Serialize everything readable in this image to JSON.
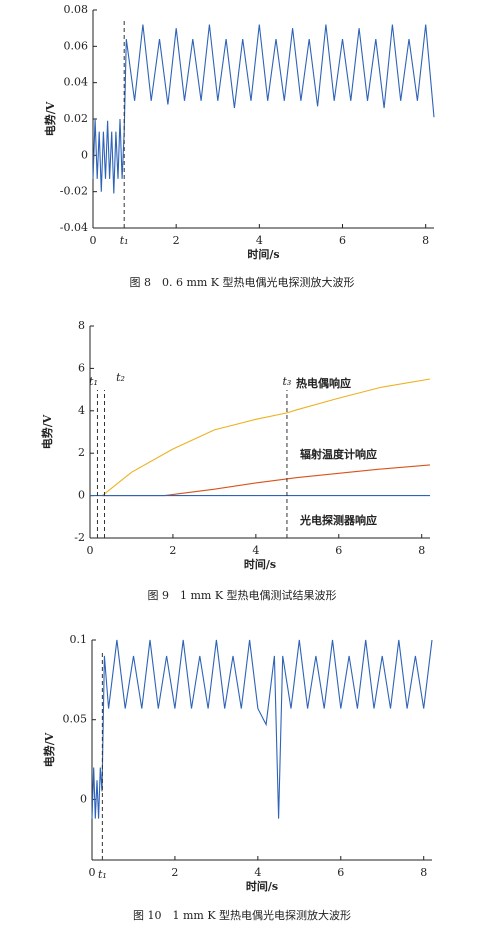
{
  "chart_data": [
    {
      "type": "line",
      "xlabel": "时间/s",
      "ylabel": "电势/V",
      "caption": "图 8　0. 6 mm K 型热电偶光电探测放大波形",
      "xlim": [
        0,
        8.2
      ],
      "ylim": [
        -0.04,
        0.08
      ],
      "xticks": [
        0,
        2,
        4,
        6,
        8
      ],
      "yticks": [
        -0.04,
        -0.02,
        0,
        0.02,
        0.04,
        0.06,
        0.08
      ],
      "markers": [
        {
          "label": "t₁",
          "x": 0.75
        }
      ],
      "series": [
        {
          "color": "#2e63b8",
          "x": [
            0,
            0.05,
            0.1,
            0.15,
            0.2,
            0.25,
            0.3,
            0.35,
            0.4,
            0.45,
            0.5,
            0.55,
            0.6,
            0.65,
            0.7,
            0.75,
            0.8,
            1.0,
            1.2,
            1.4,
            1.6,
            1.8,
            2.0,
            2.2,
            2.4,
            2.6,
            2.8,
            3.0,
            3.2,
            3.4,
            3.6,
            3.8,
            4.0,
            4.2,
            4.4,
            4.6,
            4.8,
            5.0,
            5.2,
            5.4,
            5.6,
            5.8,
            6.0,
            6.2,
            6.4,
            6.6,
            6.8,
            7.0,
            7.2,
            7.4,
            7.6,
            7.8,
            8.0,
            8.2
          ],
          "values": [
            -0.013,
            0.02,
            -0.013,
            0.013,
            -0.02,
            0.013,
            -0.013,
            0.019,
            -0.013,
            0.013,
            -0.021,
            0.013,
            -0.013,
            0.02,
            -0.013,
            0.013,
            0.064,
            0.03,
            0.072,
            0.03,
            0.064,
            0.028,
            0.07,
            0.03,
            0.064,
            0.03,
            0.072,
            0.03,
            0.064,
            0.026,
            0.064,
            0.03,
            0.072,
            0.03,
            0.064,
            0.03,
            0.07,
            0.03,
            0.064,
            0.027,
            0.072,
            0.03,
            0.064,
            0.03,
            0.07,
            0.03,
            0.064,
            0.026,
            0.072,
            0.03,
            0.064,
            0.03,
            0.072,
            0.021
          ]
        }
      ]
    },
    {
      "type": "line",
      "xlabel": "时间/s",
      "ylabel": "电势/V",
      "caption": "图 9　1 mm K 型热电偶测试结果波形",
      "xlim": [
        0,
        8.2
      ],
      "ylim": [
        -2,
        8
      ],
      "xticks": [
        0,
        2,
        4,
        6,
        8
      ],
      "yticks": [
        -2,
        0,
        2,
        4,
        6,
        8
      ],
      "markers": [
        {
          "label": "t₁",
          "x": 0.18
        },
        {
          "label": "t₂",
          "x": 0.35
        },
        {
          "label": "t₃",
          "x": 4.75
        }
      ],
      "series": [
        {
          "name": "热电偶响应",
          "color": "#edb120",
          "x": [
            0.3,
            1,
            2,
            3,
            4,
            4.75,
            5,
            6,
            7,
            8.2
          ],
          "values": [
            0,
            1.1,
            2.2,
            3.1,
            3.6,
            3.9,
            4.05,
            4.6,
            5.1,
            5.5
          ]
        },
        {
          "name": "辐射温度计响应",
          "color": "#d95319",
          "x": [
            0.3,
            1,
            1.8,
            3,
            4,
            5,
            6,
            7,
            8.2
          ],
          "values": [
            0,
            0,
            0,
            0.3,
            0.6,
            0.85,
            1.05,
            1.25,
            1.45
          ]
        },
        {
          "name": "光电探测器响应",
          "color": "#2e63b8",
          "x": [
            0,
            8.2
          ],
          "values": [
            0,
            0
          ]
        }
      ]
    },
    {
      "type": "line",
      "xlabel": "时间/s",
      "ylabel": "电势/V",
      "caption": "图 10　1 mm K 型热电偶光电探测放大波形",
      "xlim": [
        0,
        8.2
      ],
      "ylim": [
        -0.038,
        0.1
      ],
      "xticks": [
        0,
        2,
        4,
        6,
        8
      ],
      "yticks": [
        0,
        0.05,
        0.1
      ],
      "markers": [
        {
          "label": "t₁",
          "x": 0.25
        }
      ],
      "series": [
        {
          "color": "#2e63b8",
          "x": [
            0,
            0.04,
            0.08,
            0.12,
            0.16,
            0.2,
            0.24,
            0.3,
            0.4,
            0.6,
            0.8,
            1.0,
            1.2,
            1.4,
            1.6,
            1.8,
            2.0,
            2.2,
            2.4,
            2.6,
            2.8,
            3.0,
            3.2,
            3.4,
            3.6,
            3.8,
            4.0,
            4.2,
            4.4,
            4.5,
            4.6,
            4.8,
            5.0,
            5.2,
            5.4,
            5.6,
            5.8,
            6.0,
            6.2,
            6.4,
            6.6,
            6.8,
            7.0,
            7.2,
            7.4,
            7.6,
            7.8,
            8.0,
            8.2
          ],
          "values": [
            -0.012,
            0.02,
            -0.012,
            0.012,
            -0.012,
            0.02,
            0.005,
            0.09,
            0.057,
            0.1,
            0.057,
            0.09,
            0.057,
            0.1,
            0.057,
            0.09,
            0.057,
            0.1,
            0.057,
            0.09,
            0.057,
            0.1,
            0.057,
            0.09,
            0.057,
            0.1,
            0.057,
            0.047,
            0.09,
            -0.012,
            0.09,
            0.057,
            0.1,
            0.057,
            0.09,
            0.057,
            0.1,
            0.057,
            0.09,
            0.057,
            0.1,
            0.057,
            0.09,
            0.057,
            0.1,
            0.057,
            0.09,
            0.057,
            0.1
          ]
        }
      ]
    }
  ]
}
